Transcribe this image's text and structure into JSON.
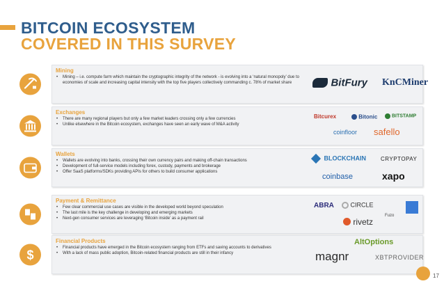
{
  "title_line1": "BITCOIN ECOSYSTEM",
  "title_line2": "COVERED IN THIS SURVEY",
  "sections": [
    {
      "title": "Mining",
      "icon": "pickaxe-icon",
      "bullets": [
        "Mining – i.e. compute farm which maintain the cryptographic integrity of the network - is evolving into a ‘natural monopoly’ due to economies of scale and increasing capital intensity with the top five players collectively commanding c. 78% of market share"
      ],
      "logos": [
        "BitFury",
        "KnCMiner"
      ]
    },
    {
      "title": "Exchanges",
      "icon": "bank-icon",
      "bullets": [
        "There are many regional players but only a few market leaders crossing only a few currencies",
        "Unlike elsewhere in the Bitcoin ecosystem, exchanges have seen an early wave of M&A activity"
      ],
      "logos": [
        "Bitcurex",
        "Bitonic",
        "BITSTAMP",
        "coinfloor",
        "safello"
      ]
    },
    {
      "title": "Wallets",
      "icon": "wallet-icon",
      "bullets": [
        "Wallets are evolving into banks, crossing their own currency pairs and making off-chain transactions",
        "Development of full-service models including forex, custody, payments and brokerage",
        "Offer SaaS platforms/SDKs providing APIs for others to build consumer applications"
      ],
      "logos": [
        "BLOCKCHAIN",
        "CRYPTOPAY",
        "coinbase",
        "xapo"
      ]
    },
    {
      "title": "Payment & Remittance",
      "icon": "transfer-icon",
      "bullets": [
        "Few clear commercial use cases are visible in the developed world beyond speculation",
        "The last mile is the key challenge in developing and emerging markets",
        "Next-gen consumer services are leveraging ‘Bitcoin inside’ as a payment rail"
      ],
      "logos": [
        "ABRA",
        "CIRCLE",
        "Fuzo",
        "rivetz"
      ]
    },
    {
      "title": "Financial Products",
      "icon": "dollar-icon",
      "bullets": [
        "Financial products have emerged in the Bitcoin ecosystem ranging from ETFs and saving accounts to derivatives",
        "With a lack of mass public adoption, Bitcoin-related financial products are still in their infancy"
      ],
      "logos": [
        "AltOptions",
        "magnr",
        "XBTPROVIDER"
      ]
    }
  ],
  "page_number": "17",
  "colors": {
    "accent": "#e8a33d",
    "title_blue": "#2f5d8c",
    "box_bg": "#f1f2f4"
  }
}
